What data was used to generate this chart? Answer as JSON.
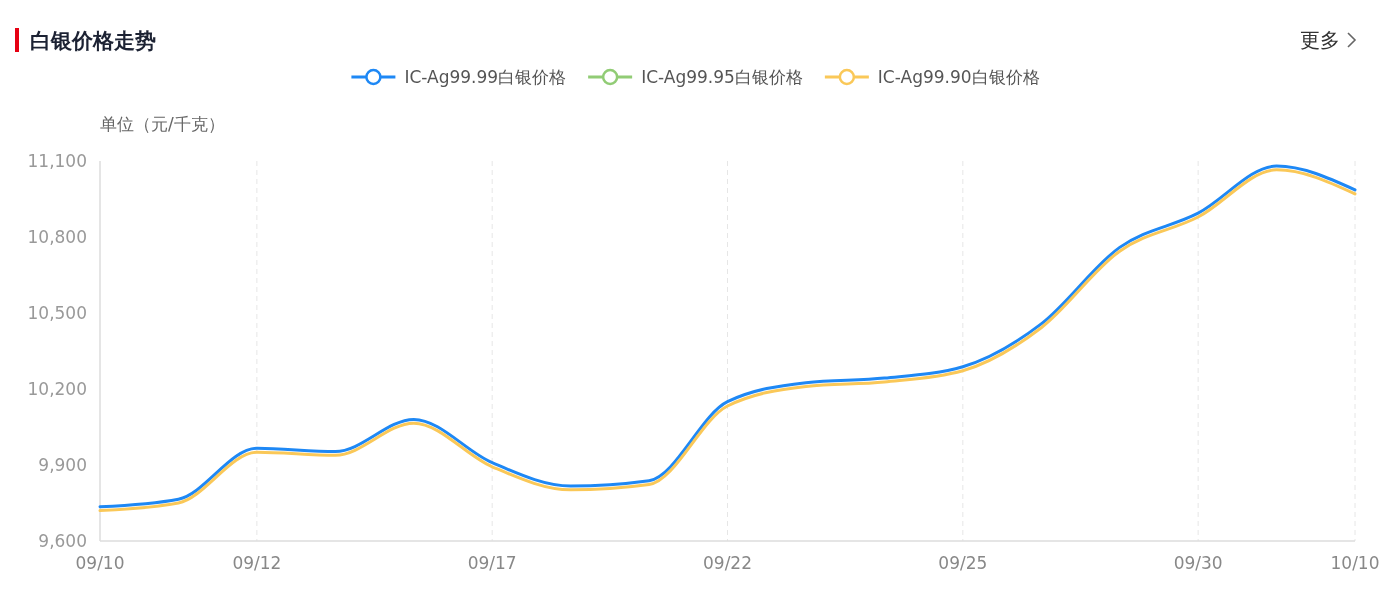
{
  "chart_data": {
    "type": "line",
    "title": "白银价格走势",
    "ylabel": "单位（元/千克）",
    "annotations": [
      "更多"
    ],
    "categories": [
      "09/10",
      null,
      "09/12",
      null,
      null,
      "09/17",
      null,
      null,
      "09/22",
      null,
      null,
      "09/25",
      null,
      null,
      "09/30",
      null,
      "10/10"
    ],
    "series": [
      {
        "name": "IC-Ag99.99白银价格",
        "color": "#1e88f5",
        "values": [
          9735,
          9765,
          9966,
          9953,
          10080,
          9909,
          9817,
          9838,
          10150,
          10225,
          10243,
          10288,
          10457,
          10759,
          10894,
          11080,
          10986
        ]
      },
      {
        "name": "IC-Ag99.95白银价格",
        "color": "#91cc75",
        "values": [
          null,
          null,
          null,
          null,
          null,
          null,
          null,
          null,
          null,
          null,
          null,
          null,
          null,
          null,
          null,
          null,
          null
        ]
      },
      {
        "name": "IC-Ag99.90白银价格",
        "color": "#fac858",
        "values": [
          9720,
          9750,
          9950,
          9938,
          10065,
          9893,
          9802,
          9823,
          10133,
          10210,
          10228,
          10272,
          10442,
          10744,
          10879,
          11065,
          10970
        ]
      }
    ],
    "ylim": [
      9600,
      11100
    ],
    "yticks": [
      {
        "value": 9600,
        "label": "9,600"
      },
      {
        "value": 9900,
        "label": "9,900"
      },
      {
        "value": 10200,
        "label": "10,200"
      },
      {
        "value": 10500,
        "label": "10,500"
      },
      {
        "value": 10800,
        "label": "10,800"
      },
      {
        "value": 11100,
        "label": "11,100"
      }
    ],
    "grid": "x",
    "legend": "top"
  }
}
